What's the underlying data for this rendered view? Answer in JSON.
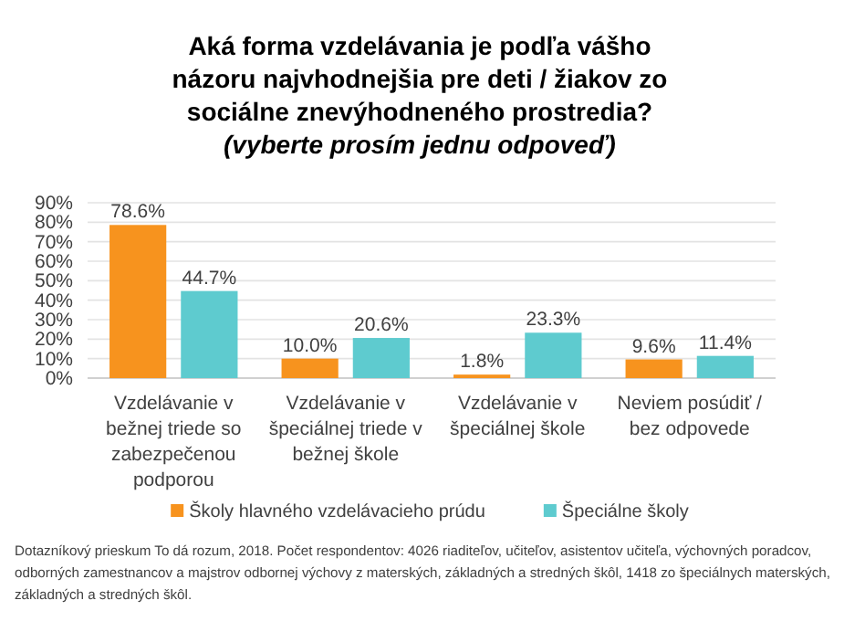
{
  "chart_data": {
    "type": "bar",
    "title": "Aká forma vzdelávania je podľa vášho názoru najvhodnejšia pre deti / žiakov zo sociálne znevýhodneného prostredia?",
    "subtitle": "(vyberte prosím jednu odpoveď)",
    "categories": [
      "Vzdelávanie v bežnej triede so zabezpečenou podporou",
      "Vzdelávanie v špeciálnej triede v bežnej škole",
      "Vzdelávanie v špeciálnej škole",
      "Neviem posúdiť / bez odpovede"
    ],
    "series": [
      {
        "name": "Školy hlavného vzdelávacieho prúdu",
        "color": "#f7931e",
        "values": [
          78.6,
          10.0,
          1.8,
          9.6
        ],
        "value_labels": [
          "78.6%",
          "10.0%",
          "1.8%",
          "9.6%"
        ]
      },
      {
        "name": "Špeciálne školy",
        "color": "#5ecbcf",
        "values": [
          44.7,
          20.6,
          23.3,
          11.4
        ],
        "value_labels": [
          "44.7%",
          "20.6%",
          "23.3%",
          "11.4%"
        ]
      }
    ],
    "ylim": [
      0,
      90
    ],
    "yticks": [
      {
        "value": 0,
        "label": "0%"
      },
      {
        "value": 10,
        "label": "10%"
      },
      {
        "value": 20,
        "label": "20%"
      },
      {
        "value": 30,
        "label": "30%"
      },
      {
        "value": 40,
        "label": "40%"
      },
      {
        "value": 50,
        "label": "50%"
      },
      {
        "value": 60,
        "label": "60%"
      },
      {
        "value": 70,
        "label": "70%"
      },
      {
        "value": 80,
        "label": "80%"
      },
      {
        "value": 90,
        "label": "90%"
      }
    ],
    "grid": "y",
    "legend": "bottom",
    "annotations": [
      "Dotazníkový prieskum To dá rozum, 2018. Počet respondentov: 4026 riaditeľov, učiteľov, asistentov učiteľa, výchovných poradcov, odborných zamestnancov a majstrov odbornej výchovy z materských, základných a stredných škôl, 1418 zo špeciálnych materských, základných a stredných škôl."
    ]
  }
}
